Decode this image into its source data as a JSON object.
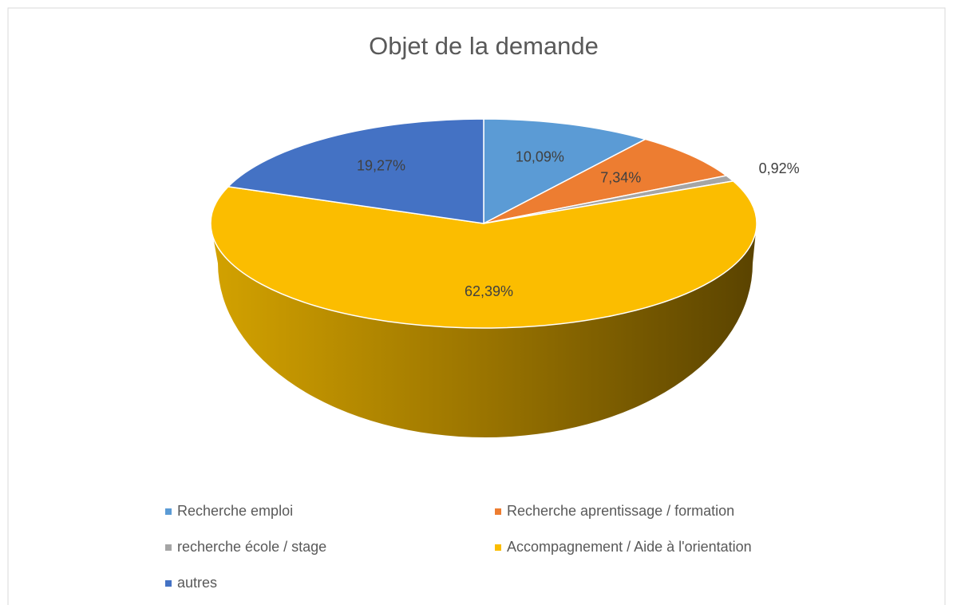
{
  "chart_data": {
    "type": "pie",
    "title": "Objet de la demande",
    "categories": [
      "Recherche emploi",
      "Recherche aprentissage / formation",
      "recherche école / stage",
      "Accompagnement / Aide à l'orientation",
      "autres"
    ],
    "values": [
      10.09,
      7.34,
      0.92,
      62.39,
      19.27
    ],
    "value_labels": [
      "10,09%",
      "7,34%",
      "0,92%",
      "62,39%",
      "19,27%"
    ],
    "colors": [
      "#5b9bd5",
      "#ed7d31",
      "#a5a5a5",
      "#fbbd00",
      "#4472c4"
    ],
    "legend": "bottom"
  }
}
